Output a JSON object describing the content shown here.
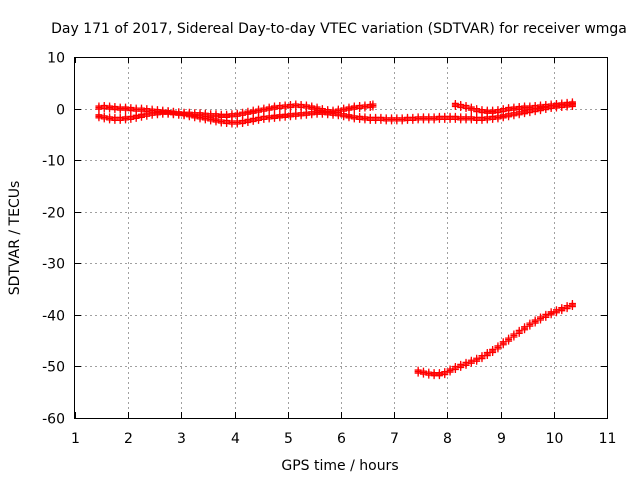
{
  "chart_data": {
    "type": "scatter",
    "title": "Day 171 of 2017, Sidereal Day-to-day VTEC variation (SDTVAR) for receiver wmga",
    "xlabel": "GPS time / hours",
    "ylabel": "SDTVAR / TECUs",
    "xlim": [
      1,
      11
    ],
    "ylim": [
      -60,
      10
    ],
    "x_ticks": [
      "1",
      "2",
      "3",
      "4",
      "5",
      "6",
      "7",
      "8",
      "9",
      "10",
      "11"
    ],
    "y_ticks": [
      "10",
      "0",
      "-10",
      "-20",
      "-30",
      "-40",
      "-50",
      "-60"
    ],
    "grid": true,
    "marker": "plus",
    "color": "#ff0000",
    "series": [
      {
        "x": [
          1.45,
          1.55,
          1.65,
          1.75,
          1.85,
          1.95,
          2.05,
          2.15,
          2.25,
          2.35,
          2.45,
          2.55,
          2.65,
          2.75,
          2.85,
          2.95,
          3.05,
          3.15,
          3.25,
          3.35,
          3.45,
          3.55,
          3.65,
          3.75,
          3.85,
          3.95,
          4.05,
          4.15,
          4.25,
          4.35,
          4.45,
          4.55,
          4.65,
          4.75,
          4.85,
          4.95,
          5.05,
          5.15,
          5.25,
          5.35,
          5.45,
          5.55,
          5.65,
          5.75,
          5.85,
          5.95,
          6.05,
          6.15,
          6.25,
          6.35,
          6.45,
          6.55,
          6.6
        ],
        "y": [
          0.2,
          0.3,
          0.2,
          0.1,
          0.0,
          0.0,
          -0.1,
          -0.2,
          -0.2,
          -0.3,
          -0.4,
          -0.5,
          -0.6,
          -0.7,
          -0.8,
          -0.9,
          -1.0,
          -1.0,
          -1.1,
          -1.1,
          -1.2,
          -1.3,
          -1.3,
          -1.4,
          -1.4,
          -1.3,
          -1.2,
          -1.0,
          -0.8,
          -0.6,
          -0.4,
          -0.2,
          0.0,
          0.2,
          0.3,
          0.4,
          0.5,
          0.6,
          0.5,
          0.4,
          0.2,
          0.0,
          -0.3,
          -0.5,
          -0.6,
          -0.4,
          -0.2,
          0.0,
          0.2,
          0.3,
          0.4,
          0.5,
          0.6
        ]
      },
      {
        "x": [
          1.45,
          1.55,
          1.65,
          1.75,
          1.85,
          1.95,
          2.05,
          2.15,
          2.25,
          2.35,
          2.45,
          2.55,
          2.65,
          2.75,
          2.85,
          2.95,
          3.05,
          3.15,
          3.25,
          3.35,
          3.45,
          3.55,
          3.65,
          3.75,
          3.85,
          3.95,
          4.05,
          4.15,
          4.25,
          4.35,
          4.45,
          4.55,
          4.65,
          4.75,
          4.85,
          4.95,
          5.05,
          5.15,
          5.25,
          5.35,
          5.45,
          5.55,
          5.65,
          5.75,
          5.85,
          5.95,
          6.05,
          6.15,
          6.25,
          6.35,
          6.45,
          6.55,
          6.65,
          6.75,
          6.85,
          6.95,
          7.05,
          7.15,
          7.25,
          7.35,
          7.45,
          7.55,
          7.65,
          7.75,
          7.85,
          7.95,
          8.05,
          8.15,
          8.25,
          8.35,
          8.45,
          8.55,
          8.65,
          8.75,
          8.85,
          8.95,
          9.05,
          9.15,
          9.25,
          9.35,
          9.45,
          9.55,
          9.65,
          9.75,
          9.85,
          9.95,
          10.05,
          10.15,
          10.25,
          10.35
        ],
        "y": [
          -1.5,
          -1.7,
          -1.9,
          -2.0,
          -2.0,
          -1.9,
          -1.8,
          -1.6,
          -1.4,
          -1.2,
          -1.0,
          -0.9,
          -0.8,
          -0.8,
          -0.9,
          -1.0,
          -1.1,
          -1.3,
          -1.5,
          -1.7,
          -1.9,
          -2.1,
          -2.3,
          -2.5,
          -2.6,
          -2.7,
          -2.7,
          -2.6,
          -2.4,
          -2.2,
          -2.0,
          -1.8,
          -1.7,
          -1.6,
          -1.5,
          -1.4,
          -1.3,
          -1.2,
          -1.1,
          -1.0,
          -0.9,
          -0.8,
          -0.8,
          -0.9,
          -1.0,
          -1.1,
          -1.3,
          -1.5,
          -1.7,
          -1.8,
          -1.9,
          -2.0,
          -2.0,
          -2.0,
          -2.1,
          -2.1,
          -2.1,
          -2.1,
          -2.0,
          -2.0,
          -1.9,
          -1.9,
          -1.9,
          -1.9,
          -1.8,
          -1.8,
          -1.8,
          -1.8,
          -1.9,
          -1.9,
          -1.9,
          -2.0,
          -2.0,
          -1.9,
          -1.8,
          -1.7,
          -1.5,
          -1.3,
          -1.1,
          -0.9,
          -0.7,
          -0.5,
          -0.3,
          -0.1,
          0.1,
          0.3,
          0.4,
          0.5,
          0.6,
          0.7
        ]
      },
      {
        "x": [
          8.15,
          8.25,
          8.35,
          8.45,
          8.55,
          8.65,
          8.75,
          8.85,
          8.95,
          9.05,
          9.15,
          9.25,
          9.35,
          9.45,
          9.55,
          9.65,
          9.75,
          9.85,
          9.95,
          10.05,
          10.15,
          10.25,
          10.35
        ],
        "y": [
          0.7,
          0.5,
          0.3,
          0.0,
          -0.3,
          -0.5,
          -0.6,
          -0.6,
          -0.5,
          -0.3,
          -0.1,
          0.0,
          0.1,
          0.2,
          0.2,
          0.3,
          0.4,
          0.5,
          0.6,
          0.7,
          0.8,
          0.9,
          1.0
        ]
      },
      {
        "x": [
          7.45,
          7.55,
          7.65,
          7.75,
          7.85,
          7.95,
          8.05,
          8.15,
          8.25,
          8.35,
          8.45,
          8.55,
          8.65,
          8.75,
          8.85,
          8.95,
          9.05,
          9.15,
          9.25,
          9.35,
          9.45,
          9.55,
          9.65,
          9.75,
          9.85,
          9.95,
          10.05,
          10.15,
          10.25,
          10.35
        ],
        "y": [
          -51.0,
          -51.2,
          -51.4,
          -51.5,
          -51.5,
          -51.3,
          -50.8,
          -50.3,
          -49.9,
          -49.5,
          -49.1,
          -48.7,
          -48.2,
          -47.6,
          -47.0,
          -46.3,
          -45.5,
          -44.8,
          -44.0,
          -43.3,
          -42.6,
          -41.9,
          -41.3,
          -40.7,
          -40.2,
          -39.7,
          -39.3,
          -38.9,
          -38.5,
          -38.1
        ]
      }
    ]
  }
}
